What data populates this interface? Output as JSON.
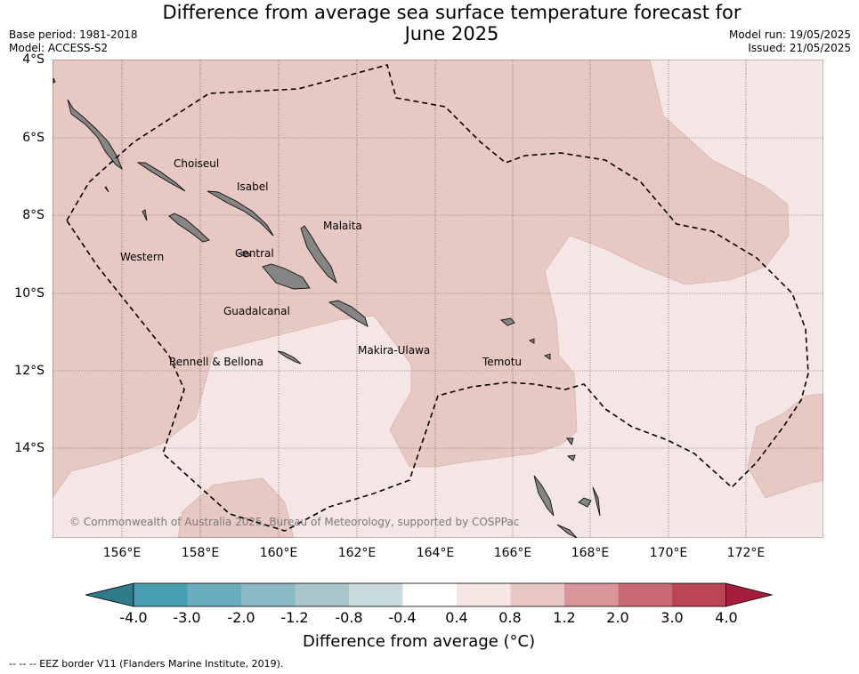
{
  "title": "Difference from average sea surface temperature forecast for June 2025",
  "title_line1": "Difference from average sea surface temperature forecast for",
  "title_line2": "June 2025",
  "base_period": "Base period: 1981-2018",
  "model": "Model: ACCESS-S2",
  "model_run": "Model run: 19/05/2025",
  "issued": "Issued: 21/05/2025",
  "lat_labels": [
    "4°S",
    "6°S",
    "8°S",
    "10°S",
    "12°S",
    "14°S"
  ],
  "lon_labels": [
    "156°E",
    "158°E",
    "160°E",
    "162°E",
    "164°E",
    "166°E",
    "168°E",
    "170°E",
    "172°E"
  ],
  "places": {
    "choiseul": "Choiseul",
    "isabel": "Isabel",
    "malaita": "Malaita",
    "western": "Western",
    "central": "Central",
    "guadalcanal": "Guadalcanal",
    "makira_ulawa": "Makira-Ulawa",
    "rennell_bellona": "Rennell & Bellona",
    "temotu": "Temotu"
  },
  "copyright": "© Commonwealth of Australia 2025, Bureau of Meteorology, supported by COSPPac",
  "colorbar": {
    "labels": [
      "-4.0",
      "-3.0",
      "-2.0",
      "-1.2",
      "-0.8",
      "-0.4",
      "0.4",
      "0.8",
      "1.2",
      "2.0",
      "3.0",
      "4.0"
    ],
    "colors": [
      "#2e7b89",
      "#479fb1",
      "#6aaebe",
      "#8bbac4",
      "#a9c7cb",
      "#c9dadd",
      "#ffffff",
      "#f6e7e5",
      "#e8c7c2",
      "#d8969b",
      "#c96a74",
      "#bc4554",
      "#a51c3c"
    ],
    "title": "Difference from average (°C)"
  },
  "legend_note": "--  --  -- EEZ border V11 (Flanders Marine Institute, 2019).",
  "colors": {
    "land": "#858585",
    "band_0p4_0p8": "#f4e6e4",
    "band_0p8_1p2": "#e8c8c2"
  }
}
